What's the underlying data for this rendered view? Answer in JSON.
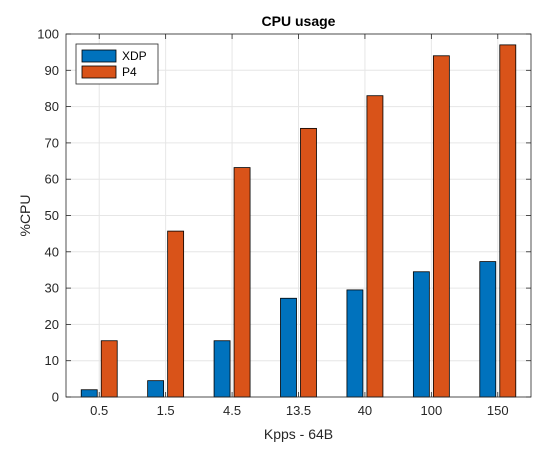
{
  "chart_data": {
    "type": "bar",
    "title": "CPU usage",
    "xlabel": "Kpps - 64B",
    "ylabel": "%CPU",
    "categories": [
      "0.5",
      "1.5",
      "4.5",
      "13.5",
      "40",
      "100",
      "150"
    ],
    "series": [
      {
        "name": "XDP",
        "values": [
          2,
          4.5,
          15.5,
          27.2,
          29.5,
          34.5,
          37.3
        ],
        "color": "#0072bd"
      },
      {
        "name": "P4",
        "values": [
          15.5,
          45.7,
          63.2,
          74,
          83,
          94,
          97
        ],
        "color": "#d95319"
      }
    ],
    "ylim": [
      0,
      100
    ],
    "yticks": [
      0,
      10,
      20,
      30,
      40,
      50,
      60,
      70,
      80,
      90,
      100
    ],
    "grid": true,
    "legend_position": "top-left"
  }
}
